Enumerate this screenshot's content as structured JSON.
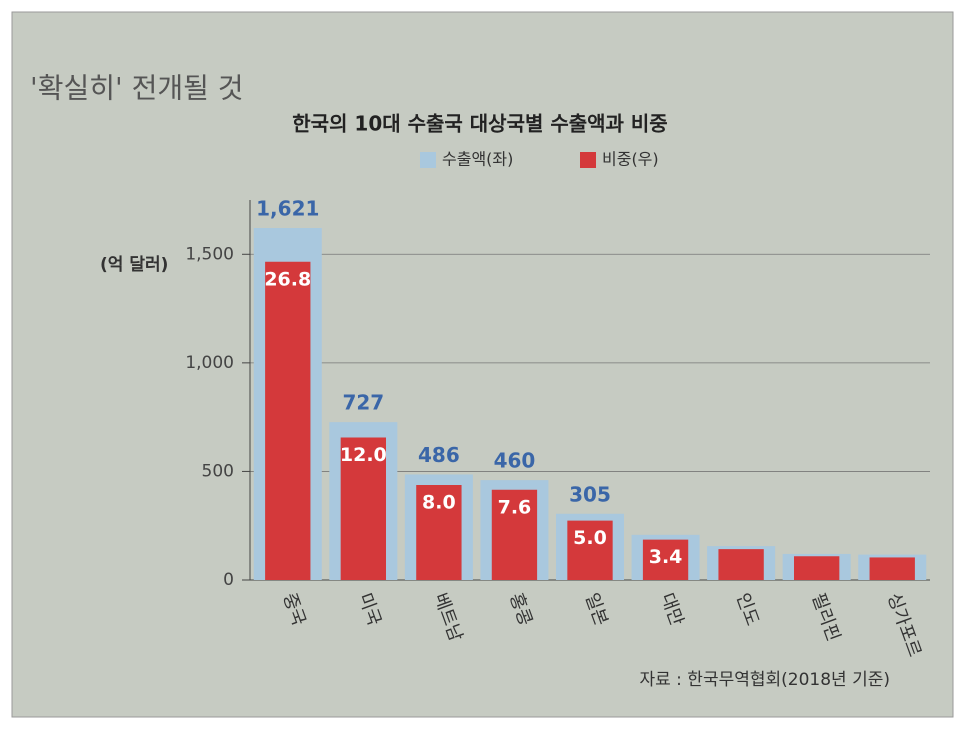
{
  "page_text": "'확실히' 전개될 것",
  "chart_data": {
    "type": "bar",
    "title": "한국의 10대 수출국 대상국별 수출액과 비중",
    "y_label": "(억 달러)",
    "source": "자료 : 한국무역협회(2018년 기준)",
    "categories": [
      "중국",
      "미국",
      "베트남",
      "홍콩",
      "일본",
      "대만",
      "인도",
      "필리핀",
      "싱가포르"
    ],
    "series": [
      {
        "name": "수출액(좌)",
        "color": "#a9c8de",
        "values": [
          1621,
          727,
          486,
          460,
          305,
          208,
          156,
          120,
          117
        ],
        "value_labels": [
          "1,621",
          "727",
          "486",
          "460",
          "305",
          null,
          null,
          null,
          null
        ]
      },
      {
        "name": "비중(우)",
        "color": "#d4393b",
        "axis": "y2",
        "values": [
          26.8,
          12.0,
          8.0,
          7.6,
          5.0,
          3.4,
          2.6,
          2.0,
          1.9
        ],
        "value_labels": [
          "26.8",
          "12.0",
          "8.0",
          "7.6",
          "5.0",
          "3.4",
          null,
          null,
          null
        ]
      }
    ],
    "ylim": [
      0,
      1750
    ],
    "yticks": [
      0,
      500,
      {
        "value": 1000,
        "label": "1,000"
      },
      {
        "value": 1500,
        "label": "1,500"
      }
    ],
    "y2lim": [
      0,
      32
    ],
    "grid": true
  }
}
